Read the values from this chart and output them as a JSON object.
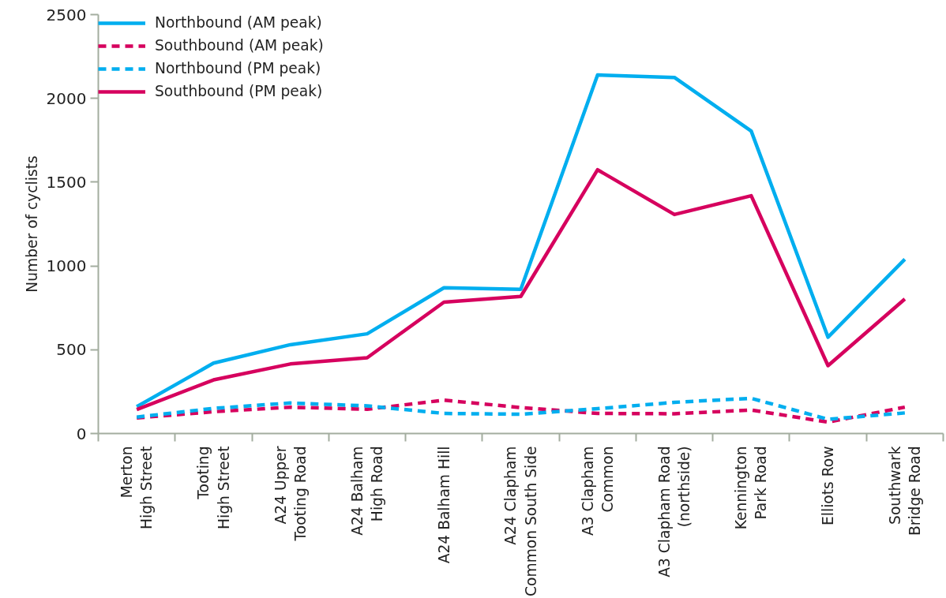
{
  "chart_data": {
    "type": "line",
    "ylabel": "Number of cyclists",
    "categories": [
      "Merton\nHigh Street",
      "Tooting\nHigh Street",
      "A24 Upper\nTooting Road",
      "A24 Balham\nHigh Road",
      "A24 Balham Hill",
      "A24 Clapham\nCommon South Side",
      "A3 Clapham\nCommon",
      "A3 Clapham Road\n(northside)",
      "Kennington\nPark Road",
      "Elliots Row",
      "Southwark\nBridge Road"
    ],
    "ylim": [
      0,
      2500
    ],
    "yticks": [
      0,
      500,
      1000,
      1500,
      2000,
      2500
    ],
    "grid": false,
    "legend": "top left",
    "marker": "none",
    "series": [
      {
        "name": "Northbound (AM peak)",
        "color": "#00aeef",
        "line_style": "solid",
        "values": [
          160,
          420,
          530,
          595,
          870,
          860,
          2140,
          2125,
          1805,
          575,
          1040
        ]
      },
      {
        "name": "Southbound (AM peak)",
        "color": "#d6005e",
        "line_style": "dashed",
        "values": [
          93,
          130,
          157,
          145,
          199,
          155,
          120,
          118,
          140,
          68,
          157
        ]
      },
      {
        "name": "Northbound (PM peak)",
        "color": "#00aeef",
        "line_style": "dashed",
        "values": [
          98,
          150,
          182,
          165,
          120,
          115,
          148,
          186,
          210,
          85,
          123
        ]
      },
      {
        "name": "Southbound (PM peak)",
        "color": "#d6005e",
        "line_style": "solid",
        "values": [
          143,
          320,
          415,
          452,
          784,
          818,
          1574,
          1307,
          1419,
          405,
          803
        ]
      }
    ]
  }
}
